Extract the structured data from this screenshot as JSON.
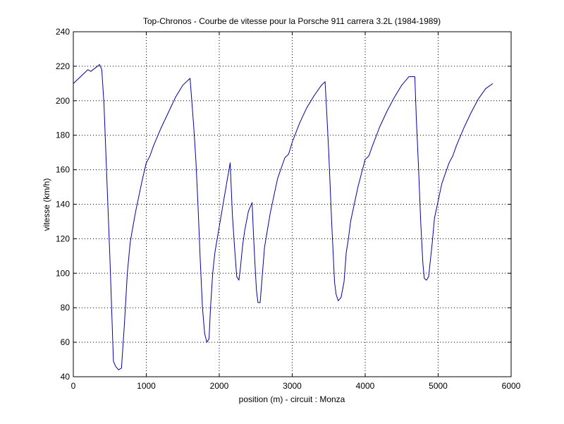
{
  "chart_data": {
    "type": "line",
    "title": "Top-Chronos - Courbe de vitesse pour la Porsche 911 carrera 3.2L (1984-1989)",
    "xlabel": "position (m) - circuit : Monza",
    "ylabel": "vitesse (km/h)",
    "xlim": [
      0,
      6000
    ],
    "ylim": [
      40,
      240
    ],
    "xticks": [
      0,
      1000,
      2000,
      3000,
      4000,
      5000,
      6000
    ],
    "yticks": [
      40,
      60,
      80,
      100,
      120,
      140,
      160,
      180,
      200,
      220,
      240
    ],
    "grid": true,
    "series": [
      {
        "color": "#0000b0",
        "x": [
          0,
          100,
          200,
          240,
          300,
          360,
          390,
          420,
          450,
          500,
          550,
          580,
          620,
          660,
          700,
          740,
          780,
          850,
          900,
          950,
          1000,
          1050,
          1100,
          1200,
          1300,
          1400,
          1500,
          1600,
          1650,
          1680,
          1710,
          1740,
          1770,
          1800,
          1830,
          1860,
          1880,
          1910,
          1940,
          2000,
          2100,
          2150,
          2180,
          2210,
          2240,
          2270,
          2290,
          2320,
          2350,
          2400,
          2450,
          2470,
          2490,
          2510,
          2530,
          2560,
          2590,
          2620,
          2700,
          2800,
          2900,
          2950,
          3000,
          3100,
          3200,
          3300,
          3400,
          3450,
          3470,
          3500,
          3540,
          3580,
          3600,
          3630,
          3670,
          3710,
          3740,
          3770,
          3800,
          3900,
          4000,
          4050,
          4100,
          4200,
          4300,
          4400,
          4500,
          4600,
          4680,
          4700,
          4730,
          4760,
          4790,
          4810,
          4840,
          4870,
          4900,
          4920,
          4950,
          5050,
          5150,
          5200,
          5250,
          5350,
          5450,
          5550,
          5650,
          5750
        ],
        "values": [
          210,
          214,
          218,
          217,
          219,
          221,
          218,
          198,
          165,
          110,
          49,
          46,
          44,
          45,
          70,
          100,
          118,
          135,
          145,
          155,
          164,
          168,
          174,
          184,
          193,
          202,
          209,
          213,
          185,
          165,
          138,
          107,
          80,
          65,
          60,
          62,
          80,
          100,
          112,
          127,
          152,
          164,
          134,
          115,
          98,
          96,
          103,
          116,
          125,
          136,
          141,
          122,
          105,
          90,
          83,
          83,
          99,
          115,
          135,
          155,
          167,
          169,
          176,
          187,
          196,
          203,
          209,
          211,
          196,
          170,
          130,
          95,
          88,
          84,
          86,
          95,
          112,
          120,
          130,
          150,
          166,
          168,
          174,
          185,
          194,
          202,
          209,
          214,
          214,
          190,
          162,
          130,
          106,
          97,
          96,
          98,
          110,
          118,
          132,
          152,
          164,
          168,
          174,
          184,
          193,
          201,
          207,
          210
        ]
      }
    ]
  }
}
